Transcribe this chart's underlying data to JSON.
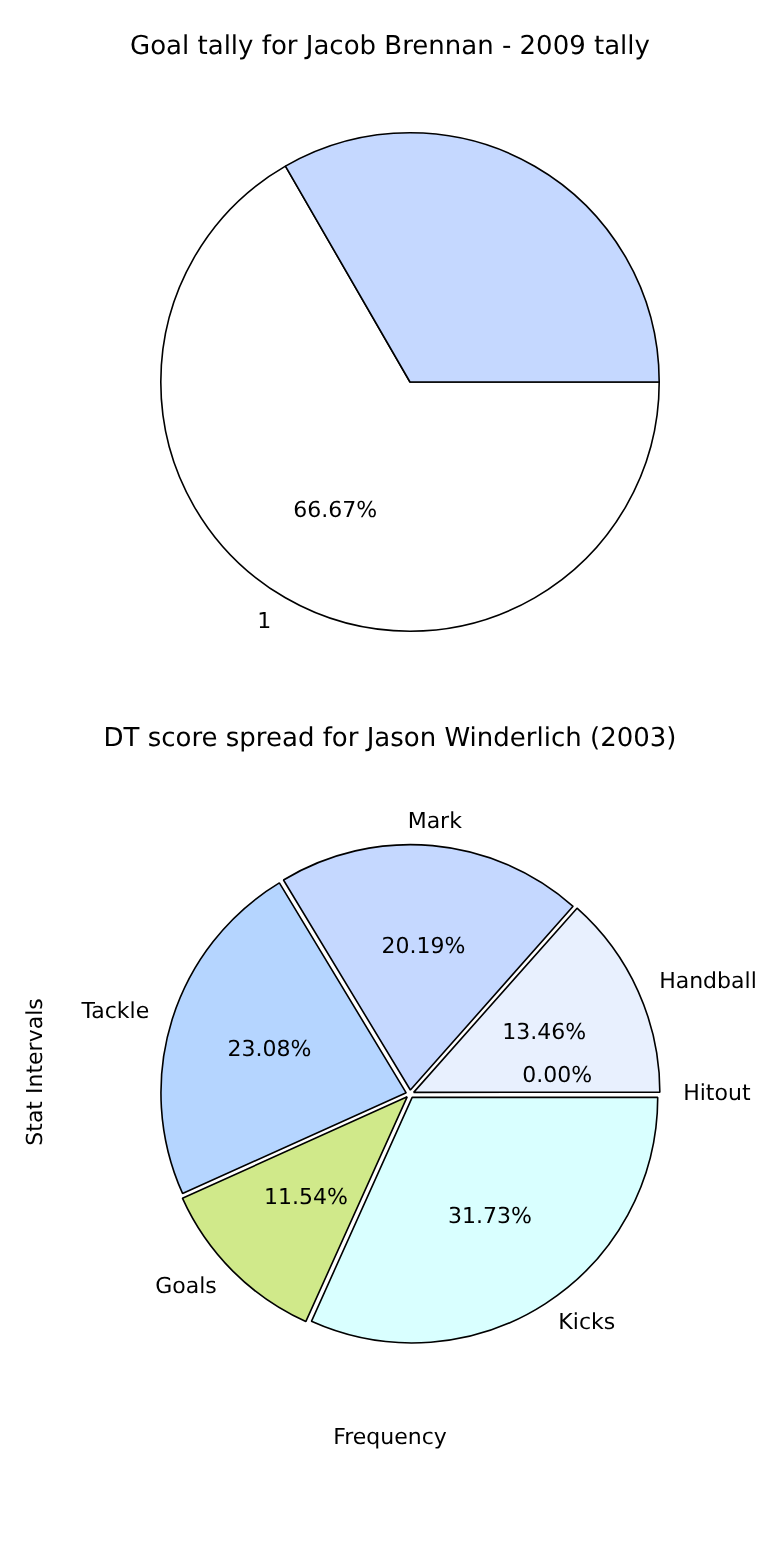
{
  "chart_data": [
    {
      "type": "pie",
      "title": "Goal tally for Jacob Brennan - 2009 tally",
      "categories": [
        "1",
        null
      ],
      "values": [
        66.67,
        33.33
      ],
      "colors": [
        "#ffffff",
        "#c5d8ff"
      ],
      "value_labels": [
        "66.67%",
        null
      ],
      "legend": false
    },
    {
      "type": "pie",
      "title": "DT score spread for Jason Winderlich (2003)",
      "xlabel": "Frequency",
      "ylabel": "Stat Intervals",
      "categories": [
        "Kicks",
        "Goals",
        "Tackle",
        "Mark",
        "Handball",
        "Hitout"
      ],
      "values": [
        31.73,
        11.54,
        23.08,
        20.19,
        13.46,
        0.0
      ],
      "colors": [
        "#d9ffff",
        "#d0e98a",
        "#b5d5ff",
        "#c5d8ff",
        "#e8f0fe",
        "#b0c8f0"
      ],
      "value_labels": [
        "31.73%",
        "11.54%",
        "23.08%",
        "20.19%",
        "13.46%",
        "0.00%"
      ],
      "legend": false
    }
  ]
}
